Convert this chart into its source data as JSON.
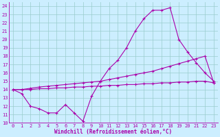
{
  "xlabel": "Windchill (Refroidissement éolien,°C)",
  "bg_color": "#cceeff",
  "line_color": "#aa00aa",
  "grid_color": "#99cccc",
  "xlim": [
    -0.5,
    23.5
  ],
  "ylim": [
    10,
    24.5
  ],
  "xticks": [
    0,
    1,
    2,
    3,
    4,
    5,
    6,
    7,
    8,
    9,
    10,
    11,
    12,
    13,
    14,
    15,
    16,
    17,
    18,
    19,
    20,
    21,
    22,
    23
  ],
  "yticks": [
    10,
    11,
    12,
    13,
    14,
    15,
    16,
    17,
    18,
    19,
    20,
    21,
    22,
    23,
    24
  ],
  "curve1_x": [
    0,
    1,
    2,
    3,
    4,
    5,
    6,
    7,
    8,
    9,
    10,
    11,
    12,
    13,
    14,
    15,
    16,
    17,
    18,
    19,
    20,
    21,
    22,
    23
  ],
  "curve1_y": [
    14.0,
    13.5,
    12.0,
    11.7,
    11.2,
    11.2,
    12.2,
    11.2,
    10.2,
    13.2,
    15.0,
    16.5,
    17.5,
    19.0,
    21.0,
    22.5,
    23.5,
    23.5,
    23.8,
    20.0,
    18.5,
    17.2,
    16.0,
    15.0
  ],
  "curve2_x": [
    0,
    1,
    2,
    3,
    4,
    5,
    6,
    7,
    8,
    9,
    10,
    11,
    12,
    13,
    14,
    15,
    16,
    17,
    18,
    19,
    20,
    21,
    22,
    23
  ],
  "curve2_y": [
    14.0,
    14.0,
    14.15,
    14.3,
    14.4,
    14.5,
    14.6,
    14.7,
    14.8,
    14.9,
    15.0,
    15.2,
    15.4,
    15.6,
    15.8,
    16.0,
    16.2,
    16.5,
    16.8,
    17.1,
    17.4,
    17.7,
    18.0,
    14.8
  ],
  "curve3_x": [
    0,
    1,
    2,
    3,
    4,
    5,
    6,
    7,
    8,
    9,
    10,
    11,
    12,
    13,
    14,
    15,
    16,
    17,
    18,
    19,
    20,
    21,
    22,
    23
  ],
  "curve3_y": [
    14.0,
    14.0,
    14.0,
    14.1,
    14.1,
    14.2,
    14.2,
    14.3,
    14.3,
    14.4,
    14.4,
    14.5,
    14.5,
    14.6,
    14.6,
    14.7,
    14.7,
    14.8,
    14.8,
    14.9,
    14.9,
    15.0,
    15.0,
    14.8
  ],
  "tick_fontsize": 5,
  "xlabel_fontsize": 5.5
}
